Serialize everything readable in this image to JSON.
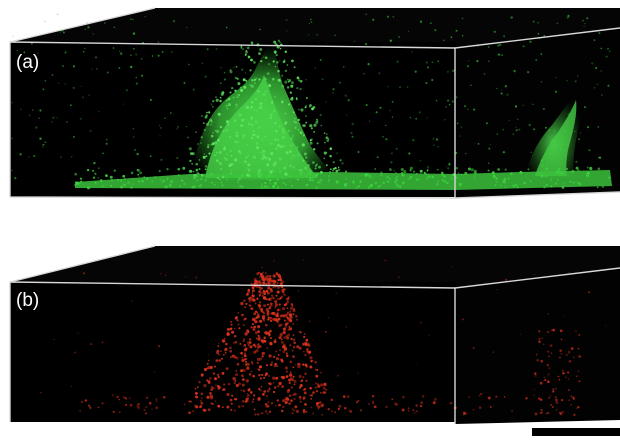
{
  "panels": [
    {
      "label": "(a)",
      "channel": "green",
      "color": "#3fd23f"
    },
    {
      "label": "(b)",
      "channel": "red",
      "color": "#e0331c"
    }
  ],
  "scale_bar": {
    "color": "#000000"
  }
}
